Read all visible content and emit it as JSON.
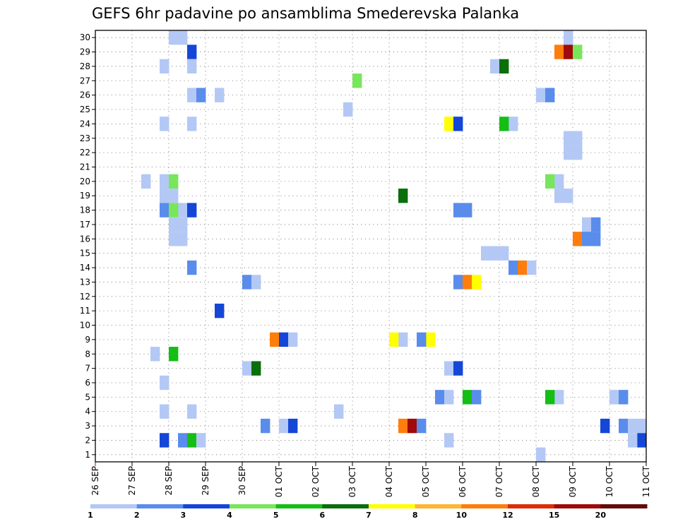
{
  "chart_data": {
    "type": "heatmap",
    "title": "GEFS 6hr padavine po ansamblima Smederevska Palanka",
    "x_tick_labels": [
      "26 SEP",
      "27 SEP",
      "28 SEP",
      "29 SEP",
      "30 SEP",
      "01 OCT",
      "02 OCT",
      "03 OCT",
      "04 OCT",
      "05 OCT",
      "06 OCT",
      "07 OCT",
      "08 OCT",
      "09 OCT",
      "10 OCT",
      "11 OCT"
    ],
    "x_range_days": [
      0,
      15
    ],
    "step_hours": 6,
    "y_tick_labels": [
      1,
      2,
      3,
      4,
      5,
      6,
      7,
      8,
      9,
      10,
      11,
      12,
      13,
      14,
      15,
      16,
      17,
      18,
      19,
      20,
      21,
      22,
      23,
      24,
      25,
      26,
      27,
      28,
      29,
      30
    ],
    "y_range": [
      0.5,
      30.5
    ],
    "grid": "dotted",
    "legend": {
      "position": "bottom",
      "boundaries": [
        1,
        2,
        3,
        4,
        5,
        6,
        7,
        8,
        10,
        12,
        15,
        20
      ],
      "colors": [
        "#b4c8f5",
        "#5a8ceb",
        "#1446d7",
        "#78e65a",
        "#14be14",
        "#0a6e0a",
        "#ffff00",
        "#ffb432",
        "#ff7d0a",
        "#dc2d0a",
        "#a00a0a",
        "#640a0a"
      ]
    },
    "cells": [
      {
        "m": 30,
        "x": [
          2.0,
          2.25
        ],
        "c": 0
      },
      {
        "m": 30,
        "x": [
          12.75
        ],
        "c": 0
      },
      {
        "m": 29,
        "x": [
          2.5
        ],
        "c": 2
      },
      {
        "m": 29,
        "x": [
          12.5
        ],
        "c": 8
      },
      {
        "m": 29,
        "x": [
          12.75
        ],
        "c": 10
      },
      {
        "m": 29,
        "x": [
          13.0
        ],
        "c": 3
      },
      {
        "m": 28,
        "x": [
          1.75,
          2.5
        ],
        "c": 0
      },
      {
        "m": 28,
        "x": [
          10.75
        ],
        "c": 0
      },
      {
        "m": 28,
        "x": [
          11.0
        ],
        "c": 5
      },
      {
        "m": 27,
        "x": [
          7.0
        ],
        "c": 3
      },
      {
        "m": 26,
        "x": [
          2.5,
          3.25,
          12.0
        ],
        "c": 0
      },
      {
        "m": 26,
        "x": [
          2.75,
          12.25
        ],
        "c": 1
      },
      {
        "m": 25,
        "x": [
          6.75
        ],
        "c": 0
      },
      {
        "m": 24,
        "x": [
          1.75,
          2.5,
          11.25
        ],
        "c": 0
      },
      {
        "m": 24,
        "x": [
          9.5
        ],
        "c": 6
      },
      {
        "m": 24,
        "x": [
          9.75
        ],
        "c": 2
      },
      {
        "m": 24,
        "x": [
          11.0
        ],
        "c": 4
      },
      {
        "m": 23,
        "x": [
          12.75,
          13.0
        ],
        "c": 0
      },
      {
        "m": 22,
        "x": [
          12.75,
          13.0
        ],
        "c": 0
      },
      {
        "m": 20,
        "x": [
          1.25,
          1.75,
          12.5
        ],
        "c": 0
      },
      {
        "m": 20,
        "x": [
          2.0,
          12.25
        ],
        "c": 3
      },
      {
        "m": 19,
        "x": [
          1.75,
          2.0,
          12.5,
          12.75
        ],
        "c": 0
      },
      {
        "m": 19,
        "x": [
          8.25
        ],
        "c": 5
      },
      {
        "m": 18,
        "x": [
          2.25
        ],
        "c": 0
      },
      {
        "m": 18,
        "x": [
          1.75
        ],
        "c": 1
      },
      {
        "m": 18,
        "x": [
          2.0
        ],
        "c": 3
      },
      {
        "m": 18,
        "x": [
          2.5
        ],
        "c": 2
      },
      {
        "m": 18,
        "x": [
          9.75,
          10.0
        ],
        "c": 1
      },
      {
        "m": 17,
        "x": [
          2.0,
          2.25,
          13.25
        ],
        "c": 0
      },
      {
        "m": 17,
        "x": [
          13.5
        ],
        "c": 1
      },
      {
        "m": 16,
        "x": [
          2.0,
          2.25
        ],
        "c": 0
      },
      {
        "m": 16,
        "x": [
          13.0
        ],
        "c": 8
      },
      {
        "m": 16,
        "x": [
          13.25,
          13.5
        ],
        "c": 1
      },
      {
        "m": 15,
        "x": [
          10.5,
          10.75,
          11.0
        ],
        "c": 0
      },
      {
        "m": 14,
        "x": [
          2.5,
          11.25
        ],
        "c": 1
      },
      {
        "m": 14,
        "x": [
          11.5
        ],
        "c": 8
      },
      {
        "m": 14,
        "x": [
          11.75
        ],
        "c": 0
      },
      {
        "m": 13,
        "x": [
          4.0,
          9.75
        ],
        "c": 1
      },
      {
        "m": 13,
        "x": [
          4.25
        ],
        "c": 0
      },
      {
        "m": 13,
        "x": [
          10.0
        ],
        "c": 8
      },
      {
        "m": 13,
        "x": [
          10.25
        ],
        "c": 6
      },
      {
        "m": 11,
        "x": [
          3.25
        ],
        "c": 2
      },
      {
        "m": 9,
        "x": [
          4.75
        ],
        "c": 8
      },
      {
        "m": 9,
        "x": [
          5.0
        ],
        "c": 2
      },
      {
        "m": 9,
        "x": [
          5.25,
          8.25
        ],
        "c": 0
      },
      {
        "m": 9,
        "x": [
          8.0,
          9.0
        ],
        "c": 6
      },
      {
        "m": 9,
        "x": [
          8.75
        ],
        "c": 1
      },
      {
        "m": 8,
        "x": [
          1.5
        ],
        "c": 0
      },
      {
        "m": 8,
        "x": [
          2.0
        ],
        "c": 4
      },
      {
        "m": 7,
        "x": [
          4.0,
          9.5
        ],
        "c": 0
      },
      {
        "m": 7,
        "x": [
          4.25
        ],
        "c": 5
      },
      {
        "m": 7,
        "x": [
          9.75
        ],
        "c": 2
      },
      {
        "m": 6,
        "x": [
          1.75
        ],
        "c": 0
      },
      {
        "m": 5,
        "x": [
          9.25
        ],
        "c": 1
      },
      {
        "m": 5,
        "x": [
          9.5,
          12.5,
          14.0
        ],
        "c": 0
      },
      {
        "m": 5,
        "x": [
          10.0,
          12.25
        ],
        "c": 4
      },
      {
        "m": 5,
        "x": [
          10.25,
          14.25
        ],
        "c": 1
      },
      {
        "m": 4,
        "x": [
          1.75,
          2.5,
          6.5
        ],
        "c": 0
      },
      {
        "m": 3,
        "x": [
          4.5,
          14.25
        ],
        "c": 1
      },
      {
        "m": 3,
        "x": [
          5.0,
          14.5,
          14.75
        ],
        "c": 0
      },
      {
        "m": 3,
        "x": [
          5.25,
          13.75
        ],
        "c": 2
      },
      {
        "m": 3,
        "x": [
          8.25
        ],
        "c": 8
      },
      {
        "m": 3,
        "x": [
          8.5
        ],
        "c": 10
      },
      {
        "m": 3,
        "x": [
          8.75
        ],
        "c": 1
      },
      {
        "m": 2,
        "x": [
          1.75,
          14.75
        ],
        "c": 2
      },
      {
        "m": 2,
        "x": [
          2.25
        ],
        "c": 1
      },
      {
        "m": 2,
        "x": [
          2.5
        ],
        "c": 4
      },
      {
        "m": 2,
        "x": [
          2.75,
          9.5,
          14.5
        ],
        "c": 0
      },
      {
        "m": 1,
        "x": [
          12.0
        ],
        "c": 0
      }
    ]
  }
}
